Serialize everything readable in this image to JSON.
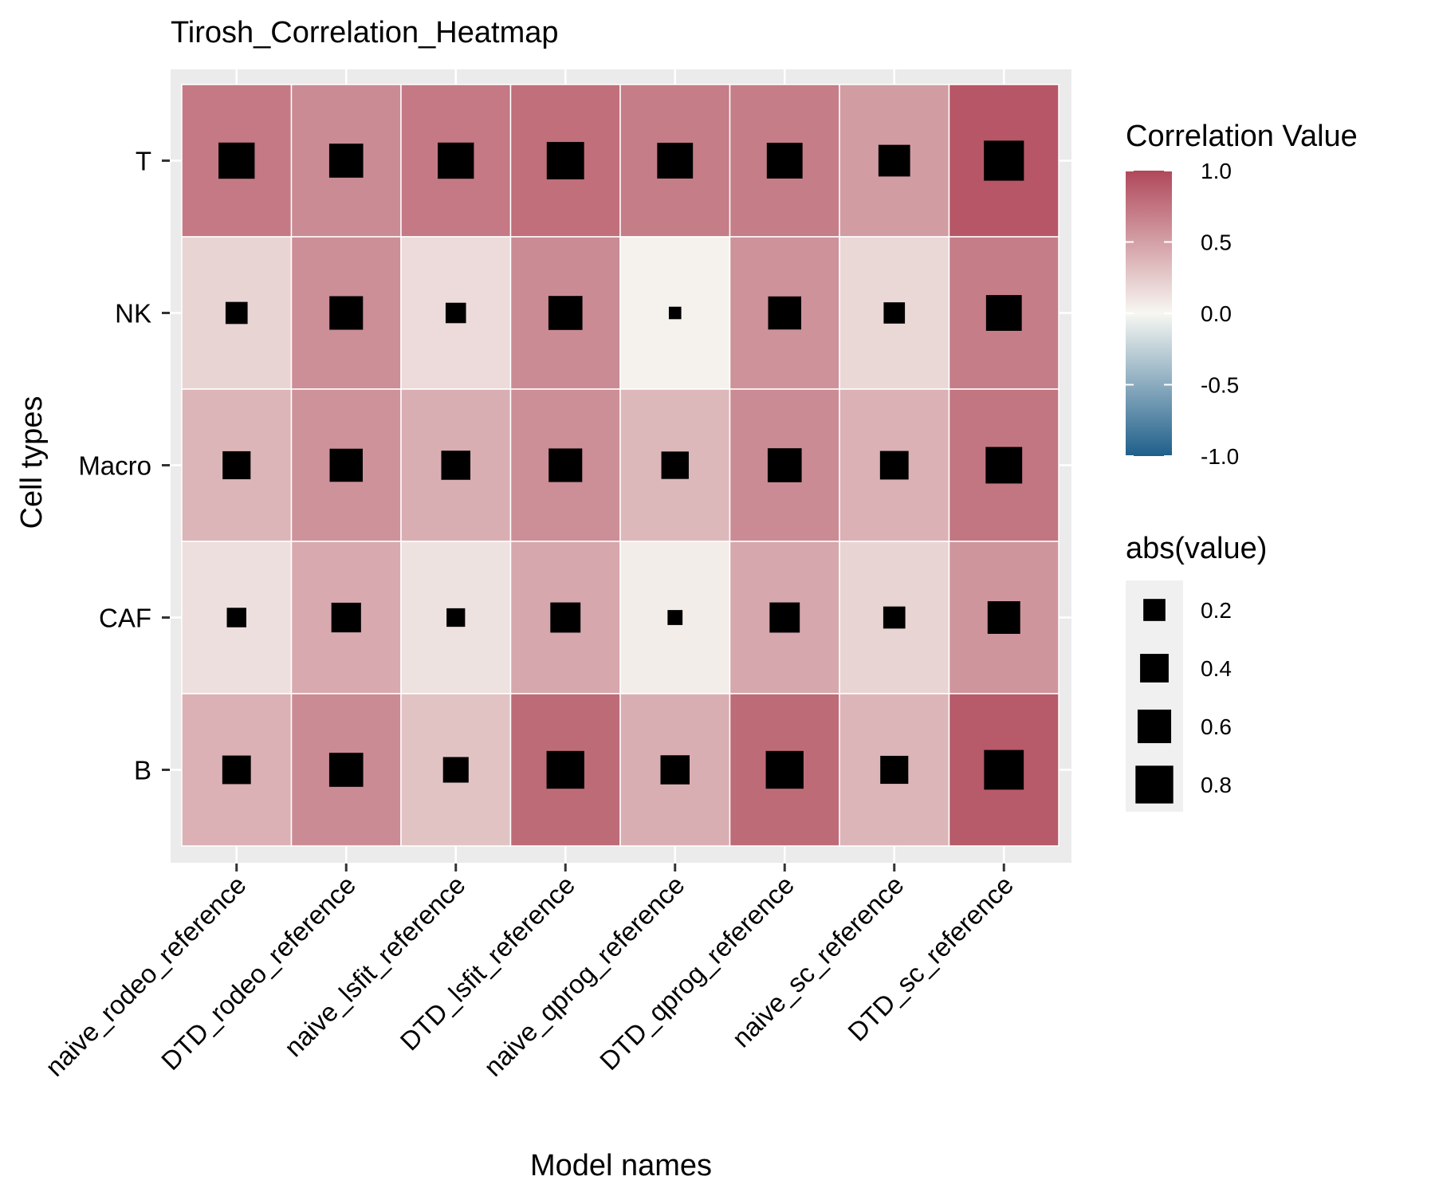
{
  "chart_data": {
    "type": "heatmap",
    "title": "Tirosh_Correlation_Heatmap",
    "xlabel": "Model names",
    "ylabel": "Cell types",
    "x_categories": [
      "naive_rodeo_reference",
      "DTD_rodeo_reference",
      "naive_lsfit_reference",
      "DTD_lsfit_reference",
      "naive_qprog_reference",
      "DTD_qprog_reference",
      "naive_sc_reference",
      "DTD_sc_reference"
    ],
    "y_categories": [
      "T",
      "NK",
      "Macro",
      "CAF",
      "B"
    ],
    "values": [
      [
        0.72,
        0.62,
        0.72,
        0.78,
        0.7,
        0.7,
        0.52,
        0.92
      ],
      [
        0.2,
        0.6,
        0.16,
        0.62,
        0.03,
        0.58,
        0.18,
        0.7
      ],
      [
        0.38,
        0.58,
        0.42,
        0.6,
        0.36,
        0.62,
        0.4,
        0.74
      ],
      [
        0.14,
        0.44,
        0.12,
        0.46,
        0.06,
        0.46,
        0.2,
        0.56
      ],
      [
        0.4,
        0.62,
        0.3,
        0.8,
        0.42,
        0.8,
        0.38,
        0.9
      ]
    ],
    "color_scale": {
      "name": "Correlation Value",
      "limits": [
        -1,
        1
      ],
      "low": "#1f5f8b",
      "mid": "#f7f7f2",
      "high": "#b0485a",
      "ticks": [
        "1.0",
        "0.5",
        "0.0",
        "-0.5",
        "-1.0"
      ]
    },
    "size_scale": {
      "name": "abs(value)",
      "ticks": [
        0.2,
        0.4,
        0.6,
        0.8
      ],
      "tick_labels": [
        "0.2",
        "0.4",
        "0.6",
        "0.8"
      ]
    },
    "grid": true,
    "legend_position": "right",
    "colors": {
      "panel_background": "#ebebeb",
      "grid_line": "#ffffff",
      "tile_border": "#ffffff",
      "marker": "#000000"
    }
  }
}
